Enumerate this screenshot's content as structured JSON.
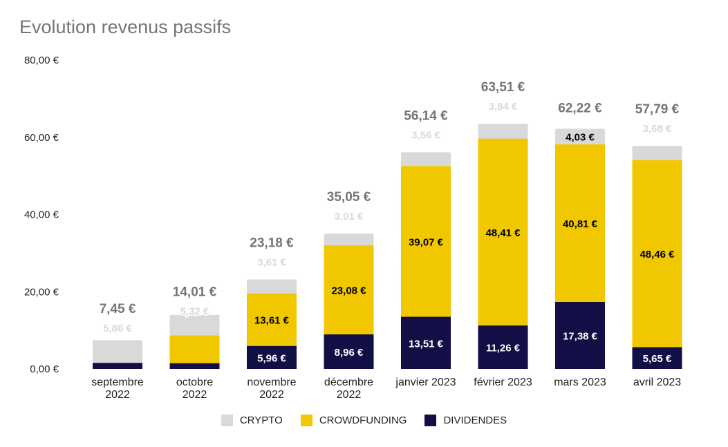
{
  "chart_data": {
    "type": "bar",
    "stacked": true,
    "title": "Evolution revenus passifs",
    "categories": [
      "septembre 2022",
      "octobre 2022",
      "novembre 2022",
      "décembre 2022",
      "janvier 2023",
      "février 2023",
      "mars 2023",
      "avril 2023"
    ],
    "series": [
      {
        "name": "DIVIDENDES",
        "color": "#120f46",
        "values": [
          1.59,
          1.5,
          5.96,
          8.96,
          13.51,
          11.26,
          17.38,
          5.65
        ],
        "labels": [
          "1,59 €",
          "1,50 €",
          "5,96 €",
          "8,96 €",
          "13,51 €",
          "11,26 €",
          "17,38 €",
          "5,65 €"
        ]
      },
      {
        "name": "CROWDFUNDING",
        "color": "#f1c800",
        "values": [
          0,
          7.19,
          13.61,
          23.08,
          39.07,
          48.41,
          40.81,
          48.46
        ],
        "labels": [
          "",
          "7,19 €",
          "13,61 €",
          "23,08 €",
          "39,07 €",
          "48,41 €",
          "40,81 €",
          "48,46 €"
        ]
      },
      {
        "name": "CRYPTO",
        "color": "#d9d9d9",
        "values": [
          5.86,
          5.32,
          3.61,
          3.01,
          3.56,
          3.84,
          4.03,
          3.68
        ],
        "labels": [
          "5,86 €",
          "5,32 €",
          "3,61 €",
          "3,01 €",
          "3,56 €",
          "3,84 €",
          "4,03 €",
          "3,68 €"
        ]
      }
    ],
    "totals": [
      "7,45 €",
      "14,01 €",
      "23,18 €",
      "35,05 €",
      "56,14 €",
      "63,51 €",
      "62,22 €",
      "57,79 €"
    ],
    "yticks": [
      "0,00 €",
      "20,00 €",
      "40,00 €",
      "60,00 €",
      "80,00 €"
    ],
    "ylim": [
      0,
      80
    ],
    "grid": false,
    "legend_position": "bottom",
    "legend": [
      "CRYPTO",
      "CROWDFUNDING",
      "DIVIDENDES"
    ]
  }
}
